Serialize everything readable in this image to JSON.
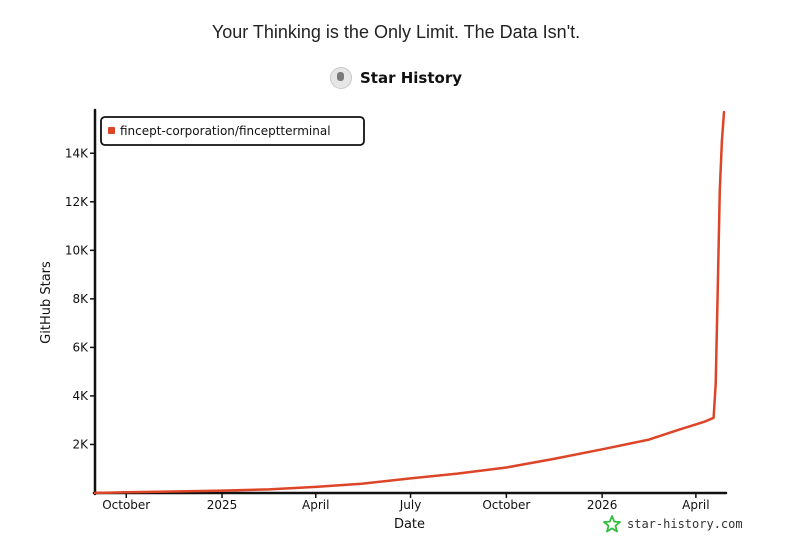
{
  "header": {
    "headline": "Your Thinking is the Only Limit. The Data Isn't.",
    "brand": "Star History"
  },
  "watermark": {
    "text": "star-history.com",
    "icon": "star-icon",
    "color": "#2fbf3f"
  },
  "colors": {
    "series": "#dd4528",
    "axis": "#111111"
  },
  "chart_data": {
    "type": "line",
    "title": "",
    "xlabel": "Date",
    "ylabel": "GitHub Stars",
    "x_type": "date",
    "xlim": [
      "2024-09-01",
      "2026-04-28"
    ],
    "ylim": [
      0,
      15700
    ],
    "grid": false,
    "legend_position": "top-left",
    "x_ticks": [
      {
        "label": "October",
        "date": "2024-10-01"
      },
      {
        "label": "2025",
        "date": "2025-01-01"
      },
      {
        "label": "April",
        "date": "2025-04-01"
      },
      {
        "label": "July",
        "date": "2025-07-01"
      },
      {
        "label": "October",
        "date": "2025-10-01"
      },
      {
        "label": "2026",
        "date": "2026-01-01"
      },
      {
        "label": "April",
        "date": "2026-04-01"
      }
    ],
    "y_ticks": [
      {
        "label": "2K",
        "value": 2000
      },
      {
        "label": "4K",
        "value": 4000
      },
      {
        "label": "6K",
        "value": 6000
      },
      {
        "label": "8K",
        "value": 8000
      },
      {
        "label": "10K",
        "value": 10000
      },
      {
        "label": "12K",
        "value": 12000
      },
      {
        "label": "14K",
        "value": 14000
      }
    ],
    "series": [
      {
        "name": "fincept-corporation/finceptterminal",
        "color": "#dd4528",
        "points": [
          [
            "2024-09-01",
            0
          ],
          [
            "2024-10-01",
            30
          ],
          [
            "2024-11-15",
            60
          ],
          [
            "2025-01-01",
            100
          ],
          [
            "2025-02-15",
            150
          ],
          [
            "2025-04-01",
            250
          ],
          [
            "2025-05-15",
            380
          ],
          [
            "2025-07-01",
            600
          ],
          [
            "2025-08-15",
            800
          ],
          [
            "2025-10-01",
            1050
          ],
          [
            "2025-11-15",
            1400
          ],
          [
            "2026-01-01",
            1800
          ],
          [
            "2026-02-15",
            2200
          ],
          [
            "2026-03-15",
            2600
          ],
          [
            "2026-04-10",
            2950
          ],
          [
            "2026-04-18",
            3100
          ],
          [
            "2026-04-20",
            4500
          ],
          [
            "2026-04-22",
            8500
          ],
          [
            "2026-04-24",
            12500
          ],
          [
            "2026-04-26",
            14500
          ],
          [
            "2026-04-28",
            15700
          ]
        ]
      }
    ]
  }
}
